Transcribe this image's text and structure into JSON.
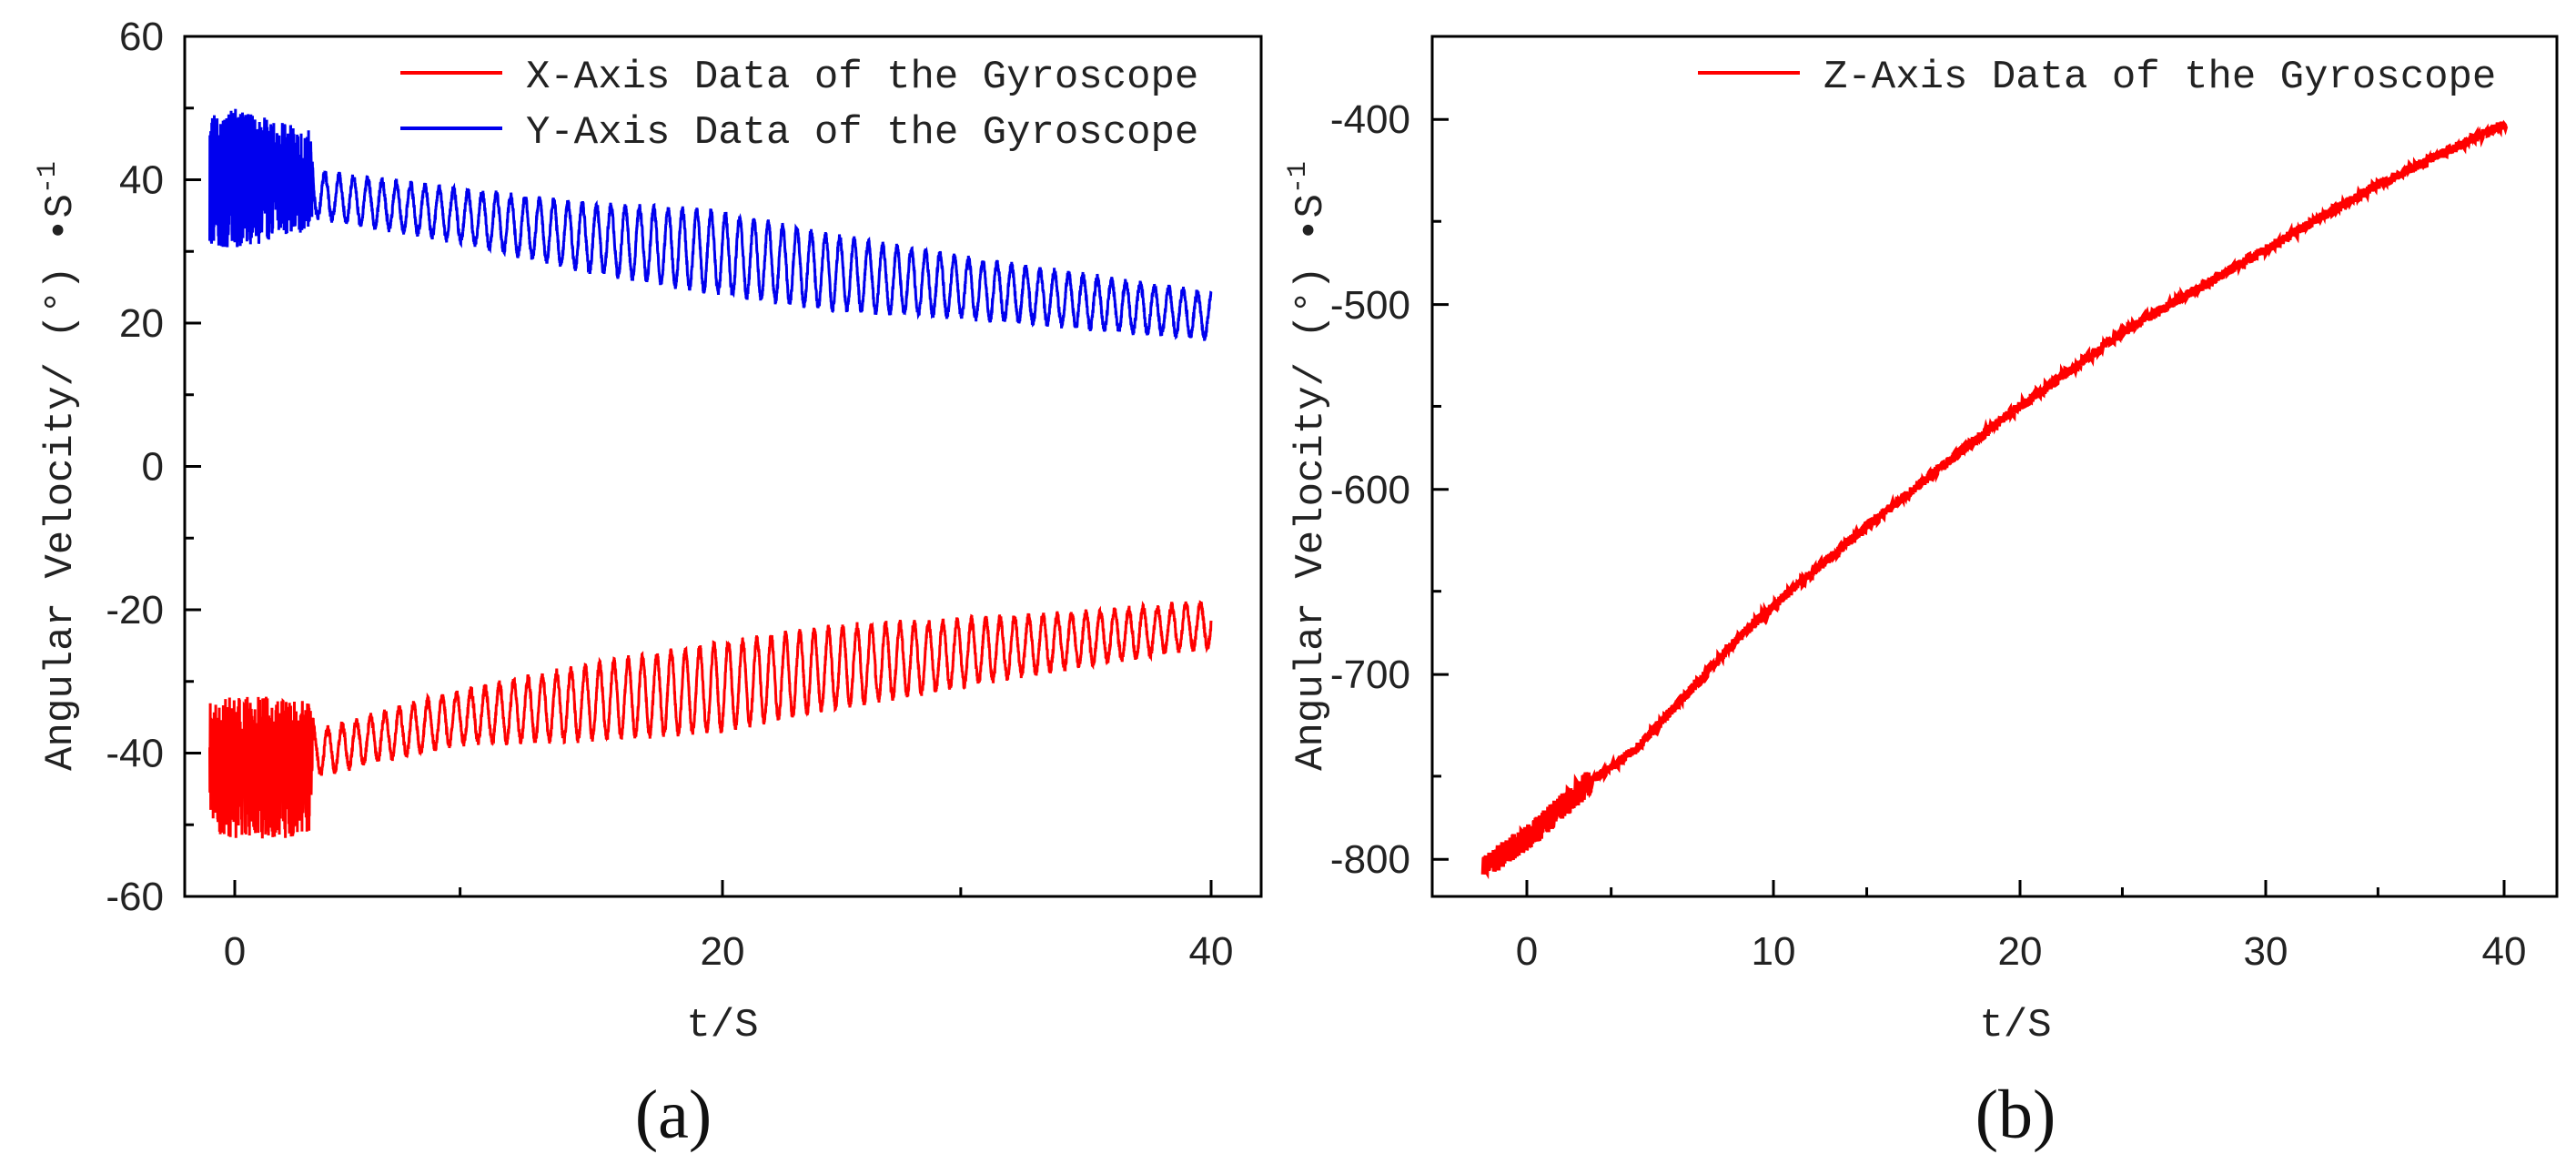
{
  "chart_data": [
    {
      "id": "a",
      "type": "line",
      "caption": "(a)",
      "xlabel": "t/S",
      "ylabel": "Angular Velocity/ (°) •S",
      "ylabel_sup": "-1",
      "xlim": [
        -1,
        42
      ],
      "ylim": [
        -60,
        60
      ],
      "xticks": [
        0,
        20,
        40
      ],
      "yticks": [
        -60,
        -40,
        -20,
        0,
        20,
        40,
        60
      ],
      "legend_position": "top-right",
      "series": [
        {
          "name": "X-Axis Data of the Gyroscope",
          "color": "#ff0000",
          "t": [
            0,
            1,
            2,
            3,
            4,
            4.2,
            10,
            15,
            20,
            25,
            30,
            35,
            40
          ],
          "mean": [
            -42,
            -42,
            -42,
            -42,
            -42,
            -40,
            -35,
            -33,
            -31,
            -28,
            -26,
            -24,
            -22
          ],
          "amplitude": [
            9,
            10,
            10,
            10,
            9,
            3,
            3.5,
            5,
            6,
            5.5,
            4.5,
            3.5,
            3
          ]
        },
        {
          "name": "Y-Axis Data of the Gyroscope",
          "color": "#0000ee",
          "t": [
            0,
            1,
            2,
            3,
            4,
            4.2,
            10,
            15,
            20,
            25,
            30,
            35,
            40
          ],
          "mean": [
            40,
            40,
            40,
            40,
            40,
            38,
            35,
            32,
            30,
            27,
            25,
            23,
            21
          ],
          "amplitude": [
            9,
            10,
            9,
            8,
            7,
            3,
            3.5,
            4.5,
            5.5,
            5,
            4,
            3.5,
            3
          ]
        }
      ]
    },
    {
      "id": "b",
      "type": "line",
      "caption": "(b)",
      "xlabel": "t/S",
      "ylabel": "Angular Velocity/ (°) •S",
      "ylabel_sup": "-1",
      "xlim": [
        -2,
        42
      ],
      "ylim": [
        -815,
        -350
      ],
      "xticks": [
        0,
        10,
        20,
        30,
        40
      ],
      "yticks": [
        -800,
        -700,
        -600,
        -500,
        -400
      ],
      "legend_position": "top-right",
      "series": [
        {
          "name": "Z-Axis Data of the Gyroscope",
          "color": "#ff0000",
          "t": [
            0,
            2,
            4,
            6,
            8,
            10,
            12,
            15,
            20,
            25,
            30,
            35,
            40
          ],
          "values": [
            -800,
            -780,
            -755,
            -735,
            -705,
            -675,
            -650,
            -615,
            -560,
            -510,
            -470,
            -430,
            -397
          ]
        }
      ]
    }
  ]
}
